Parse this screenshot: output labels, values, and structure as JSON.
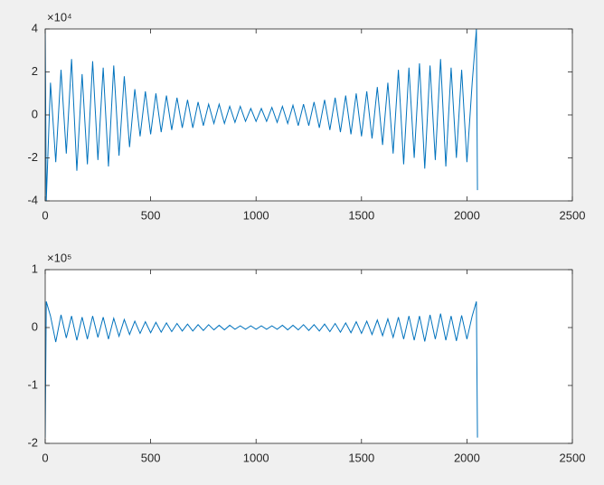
{
  "chart_data": [
    {
      "type": "line",
      "y_exponent_label": "×10⁴",
      "x": [
        0,
        5,
        25,
        50,
        75,
        100,
        125,
        150,
        175,
        200,
        225,
        250,
        275,
        300,
        325,
        350,
        375,
        400,
        425,
        450,
        475,
        500,
        525,
        550,
        575,
        600,
        625,
        650,
        675,
        700,
        725,
        750,
        775,
        800,
        825,
        850,
        875,
        900,
        925,
        950,
        975,
        1000,
        1025,
        1050,
        1075,
        1100,
        1125,
        1150,
        1175,
        1200,
        1225,
        1250,
        1275,
        1300,
        1325,
        1350,
        1375,
        1400,
        1425,
        1450,
        1475,
        1500,
        1525,
        1550,
        1575,
        1600,
        1625,
        1650,
        1675,
        1700,
        1725,
        1750,
        1775,
        1800,
        1825,
        1850,
        1875,
        1900,
        1925,
        1950,
        1975,
        2000,
        2025,
        2045,
        2050
      ],
      "series": [
        {
          "color": "#0072bd",
          "values": [
            4,
            -4,
            1.5,
            -2.2,
            2.1,
            -1.8,
            2.6,
            -2.6,
            1.9,
            -2.3,
            2.5,
            -2.1,
            2.2,
            -2.4,
            2.3,
            -1.9,
            1.8,
            -1.5,
            1.2,
            -1.0,
            1.1,
            -0.9,
            1.0,
            -0.8,
            0.9,
            -0.7,
            0.8,
            -0.6,
            0.7,
            -0.6,
            0.6,
            -0.5,
            0.5,
            -0.4,
            0.5,
            -0.4,
            0.4,
            -0.35,
            0.4,
            -0.3,
            0.3,
            -0.3,
            0.3,
            -0.3,
            0.35,
            -0.35,
            0.4,
            -0.4,
            0.45,
            -0.5,
            0.5,
            -0.5,
            0.6,
            -0.6,
            0.7,
            -0.7,
            0.8,
            -0.8,
            0.9,
            -0.9,
            1.0,
            -1.0,
            1.1,
            -1.1,
            1.3,
            -1.4,
            1.5,
            -1.8,
            2.1,
            -2.3,
            2.2,
            -2.0,
            2.4,
            -2.5,
            2.3,
            -2.1,
            2.6,
            -2.4,
            2.2,
            -2.0,
            2.1,
            -2.2,
            1.5,
            4,
            -3.5
          ]
        }
      ],
      "xlim": [
        0,
        2500
      ],
      "xticks": [
        0,
        500,
        1000,
        1500,
        2000,
        2500
      ],
      "ylim": [
        -4,
        4
      ],
      "yticks": [
        -4,
        -2,
        0,
        2,
        4
      ]
    },
    {
      "type": "line",
      "y_exponent_label": "×10⁵",
      "x": [
        0,
        5,
        25,
        50,
        75,
        100,
        125,
        150,
        175,
        200,
        225,
        250,
        275,
        300,
        325,
        350,
        375,
        400,
        425,
        450,
        475,
        500,
        525,
        550,
        575,
        600,
        625,
        650,
        675,
        700,
        725,
        750,
        775,
        800,
        825,
        850,
        875,
        900,
        925,
        950,
        975,
        1000,
        1025,
        1050,
        1075,
        1100,
        1125,
        1150,
        1175,
        1200,
        1225,
        1250,
        1275,
        1300,
        1325,
        1350,
        1375,
        1400,
        1425,
        1450,
        1475,
        1500,
        1525,
        1550,
        1575,
        1600,
        1625,
        1650,
        1675,
        1700,
        1725,
        1750,
        1775,
        1800,
        1825,
        1850,
        1875,
        1900,
        1925,
        1950,
        1975,
        2000,
        2025,
        2045,
        2050
      ],
      "series": [
        {
          "color": "#0072bd",
          "values": [
            -1.9,
            0.45,
            0.2,
            -0.25,
            0.22,
            -0.18,
            0.2,
            -0.22,
            0.18,
            -0.2,
            0.2,
            -0.17,
            0.18,
            -0.2,
            0.16,
            -0.15,
            0.14,
            -0.12,
            0.11,
            -0.1,
            0.1,
            -0.09,
            0.09,
            -0.08,
            0.08,
            -0.07,
            0.07,
            -0.06,
            0.06,
            -0.06,
            0.05,
            -0.05,
            0.05,
            -0.04,
            0.04,
            -0.04,
            0.04,
            -0.03,
            0.03,
            -0.03,
            0.03,
            -0.03,
            0.03,
            -0.03,
            0.03,
            -0.03,
            0.04,
            -0.04,
            0.04,
            -0.04,
            0.05,
            -0.05,
            0.05,
            -0.06,
            0.06,
            -0.07,
            0.07,
            -0.08,
            0.08,
            -0.09,
            0.1,
            -0.1,
            0.11,
            -0.12,
            0.13,
            -0.14,
            0.15,
            -0.17,
            0.18,
            -0.2,
            0.2,
            -0.22,
            0.2,
            -0.24,
            0.22,
            -0.2,
            0.24,
            -0.22,
            0.2,
            -0.23,
            0.21,
            -0.2,
            0.2,
            0.45,
            -1.9
          ]
        }
      ],
      "xlim": [
        0,
        2500
      ],
      "xticks": [
        0,
        500,
        1000,
        1500,
        2000,
        2500
      ],
      "ylim": [
        -2,
        1
      ],
      "yticks": [
        -2,
        -1,
        0,
        1
      ]
    }
  ]
}
